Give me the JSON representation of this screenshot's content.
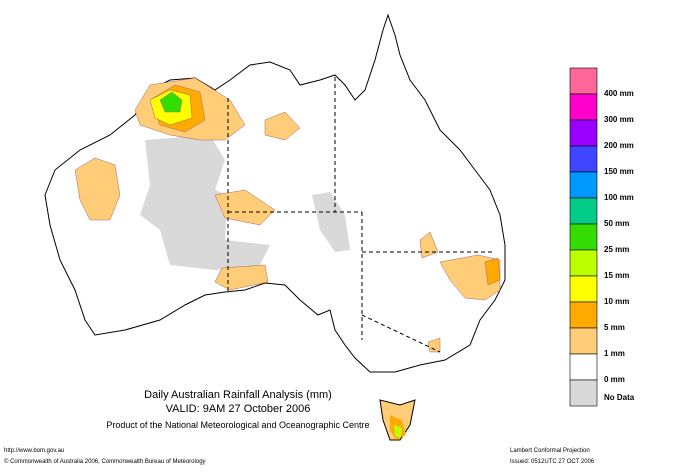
{
  "title": "Daily Australian Rainfall Analysis (mm)",
  "valid": "VALID: 9AM 27 October 2006",
  "product": "Product of the National Meteorological and Oceanographic Centre",
  "legend": [
    {
      "color": "#ff6699",
      "label": "400 mm"
    },
    {
      "color": "#ff00cc",
      "label": "300 mm"
    },
    {
      "color": "#9900ff",
      "label": "200 mm"
    },
    {
      "color": "#3f46ff",
      "label": "150 mm"
    },
    {
      "color": "#0099ff",
      "label": "100 mm"
    },
    {
      "color": "#00cc88",
      "label": "50 mm"
    },
    {
      "color": "#33dd00",
      "label": "25 mm"
    },
    {
      "color": "#bbff00",
      "label": "15 mm"
    },
    {
      "color": "#ffff00",
      "label": "10 mm"
    },
    {
      "color": "#ffaa00",
      "label": "5 mm"
    },
    {
      "color": "#ffcc77",
      "label": "1 mm"
    },
    {
      "color": "#ffffff",
      "label": "0 mm"
    },
    {
      "color": "#d9d9d9",
      "label": "No Data"
    }
  ],
  "footer": {
    "url": "http://www.bom.gov.au",
    "copyright": "© Commonwealth of Australia 2006, Commonwealth Bureau of Meteorology",
    "projection": "Lambert Conformal Projection",
    "issued": "Issued: 0512UTC 27 OCT 2006"
  }
}
